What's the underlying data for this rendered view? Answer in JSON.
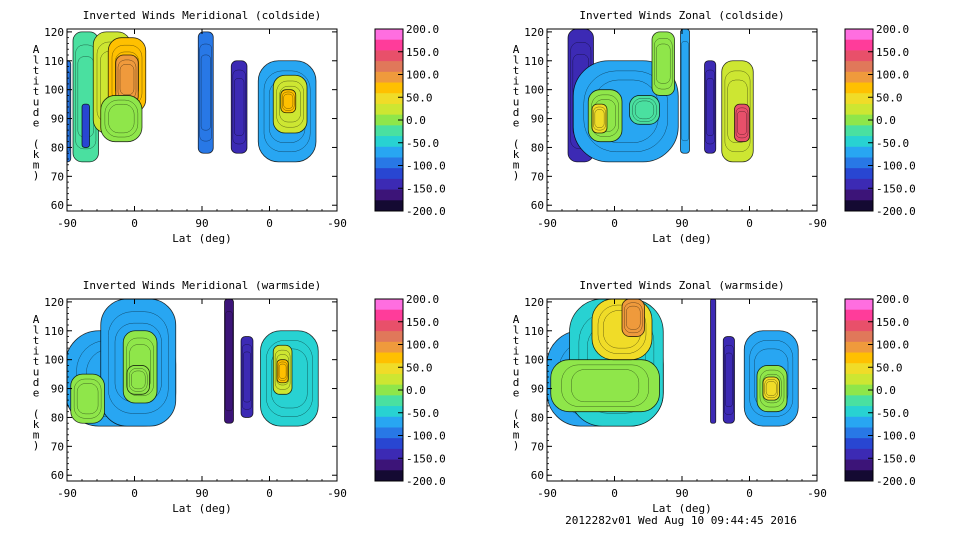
{
  "footer": "2012282v01 Wed Aug 10 09:44:45 2016",
  "colorbar": {
    "ticks": [
      "200.0",
      "150.0",
      "100.0",
      "50.0",
      "0.0",
      "-50.0",
      "-100.0",
      "-150.0",
      "-200.0"
    ],
    "colors": [
      "#ff6ee0",
      "#ff3c9a",
      "#e8506a",
      "#e0785a",
      "#ef9a3c",
      "#ffc000",
      "#f0dc28",
      "#cde632",
      "#8fe64a",
      "#4ae0a0",
      "#28d2d2",
      "#28a6f2",
      "#2878e6",
      "#2846d2",
      "#3c2ab4",
      "#3c1478",
      "#140a32"
    ]
  },
  "chart_data": [
    {
      "type": "heatmap",
      "title": "Inverted Winds Meridional (coldside)",
      "xlabel": "Lat (deg)",
      "ylabel": "Altitude (km)",
      "x_ticks": [
        "-90",
        "0",
        "90",
        "0",
        "-90"
      ],
      "y_ticks": [
        "60",
        "70",
        "80",
        "90",
        "100",
        "110",
        "120"
      ],
      "ylim": [
        58,
        121
      ],
      "colorbar_range": [
        -200,
        200
      ],
      "blobs": [
        {
          "x": [
            -97,
            -85
          ],
          "y": [
            75,
            110
          ],
          "v": -90
        },
        {
          "x": [
            -82,
            -48
          ],
          "y": [
            75,
            120
          ],
          "v": -20
        },
        {
          "x": [
            -55,
            -5
          ],
          "y": [
            85,
            120
          ],
          "v": 35
        },
        {
          "x": [
            -35,
            15
          ],
          "y": [
            92,
            118
          ],
          "v": 75
        },
        {
          "x": [
            -25,
            5
          ],
          "y": [
            95,
            112
          ],
          "v": 105
        },
        {
          "x": [
            -45,
            10
          ],
          "y": [
            82,
            98
          ],
          "v": 10
        },
        {
          "x": [
            -70,
            -60
          ],
          "y": [
            80,
            95
          ],
          "v": -120
        },
        {
          "x": [
            85,
            105
          ],
          "y": [
            78,
            120
          ],
          "v": -90
        },
        {
          "x": [
            129,
            150
          ],
          "y": [
            78,
            110
          ],
          "v": -140
        },
        {
          "x": [
            165,
            242
          ],
          "y": [
            75,
            110
          ],
          "v": -60
        },
        {
          "x": [
            185,
            230
          ],
          "y": [
            85,
            105
          ],
          "v": 20
        },
        {
          "x": [
            195,
            215
          ],
          "y": [
            92,
            100
          ],
          "v": 60
        }
      ]
    },
    {
      "type": "heatmap",
      "title": "Inverted Winds Zonal (coldside)",
      "xlabel": "Lat (deg)",
      "ylabel": "Altitude (km)",
      "x_ticks": [
        "-90",
        "0",
        "90",
        "0",
        "-90"
      ],
      "y_ticks": [
        "60",
        "70",
        "80",
        "90",
        "100",
        "110",
        "120"
      ],
      "ylim": [
        58,
        121
      ],
      "colorbar_range": [
        -200,
        200
      ],
      "blobs": [
        {
          "x": [
            -62,
            -28
          ],
          "y": [
            75,
            121
          ],
          "v": -140
        },
        {
          "x": [
            -55,
            85
          ],
          "y": [
            75,
            110
          ],
          "v": -60
        },
        {
          "x": [
            -35,
            10
          ],
          "y": [
            82,
            100
          ],
          "v": -5
        },
        {
          "x": [
            -30,
            -10
          ],
          "y": [
            85,
            95
          ],
          "v": 40
        },
        {
          "x": [
            20,
            60
          ],
          "y": [
            88,
            98
          ],
          "v": -30
        },
        {
          "x": [
            50,
            80
          ],
          "y": [
            98,
            120
          ],
          "v": -10
        },
        {
          "x": [
            88,
            100
          ],
          "y": [
            78,
            121
          ],
          "v": -80
        },
        {
          "x": [
            120,
            135
          ],
          "y": [
            78,
            110
          ],
          "v": -150
        },
        {
          "x": [
            143,
            185
          ],
          "y": [
            75,
            110
          ],
          "v": 30
        },
        {
          "x": [
            160,
            180
          ],
          "y": [
            82,
            95
          ],
          "v": 150
        }
      ]
    },
    {
      "type": "heatmap",
      "title": "Inverted Winds Meridional (warmside)",
      "xlabel": "Lat (deg)",
      "ylabel": "Altitude (km)",
      "x_ticks": [
        "-90",
        "0",
        "90",
        "0",
        "-90"
      ],
      "y_ticks": [
        "60",
        "70",
        "80",
        "90",
        "100",
        "110",
        "120"
      ],
      "ylim": [
        58,
        121
      ],
      "colorbar_range": [
        -200,
        200
      ],
      "blobs": [
        {
          "x": [
            -92,
            55
          ],
          "y": [
            77,
            110
          ],
          "v": -70
        },
        {
          "x": [
            -45,
            55
          ],
          "y": [
            77,
            121
          ],
          "v": -70
        },
        {
          "x": [
            -85,
            -40
          ],
          "y": [
            78,
            95
          ],
          "v": 10
        },
        {
          "x": [
            -15,
            30
          ],
          "y": [
            85,
            110
          ],
          "v": -10
        },
        {
          "x": [
            -10,
            20
          ],
          "y": [
            88,
            98
          ],
          "v": 10
        },
        {
          "x": [
            120,
            132
          ],
          "y": [
            78,
            121
          ],
          "v": -160
        },
        {
          "x": [
            142,
            158
          ],
          "y": [
            80,
            108
          ],
          "v": -150
        },
        {
          "x": [
            168,
            245
          ],
          "y": [
            77,
            110
          ],
          "v": -40
        },
        {
          "x": [
            185,
            210
          ],
          "y": [
            88,
            105
          ],
          "v": 30
        },
        {
          "x": [
            190,
            205
          ],
          "y": [
            92,
            100
          ],
          "v": 80
        }
      ]
    },
    {
      "type": "heatmap",
      "title": "Inverted Winds Zonal (warmside)",
      "xlabel": "Lat (deg)",
      "ylabel": "Altitude (km)",
      "x_ticks": [
        "-90",
        "0",
        "90",
        "0",
        "-90"
      ],
      "y_ticks": [
        "60",
        "70",
        "80",
        "90",
        "100",
        "110",
        "120"
      ],
      "ylim": [
        58,
        121
      ],
      "colorbar_range": [
        -200,
        200
      ],
      "blobs": [
        {
          "x": [
            -90,
            65
          ],
          "y": [
            77,
            110
          ],
          "v": -60
        },
        {
          "x": [
            -60,
            65
          ],
          "y": [
            77,
            121
          ],
          "v": -50
        },
        {
          "x": [
            -85,
            60
          ],
          "y": [
            82,
            100
          ],
          "v": -5
        },
        {
          "x": [
            -30,
            50
          ],
          "y": [
            100,
            121
          ],
          "v": 40
        },
        {
          "x": [
            10,
            40
          ],
          "y": [
            108,
            121
          ],
          "v": 90
        },
        {
          "x": [
            128,
            135
          ],
          "y": [
            78,
            121
          ],
          "v": -150
        },
        {
          "x": [
            145,
            160
          ],
          "y": [
            78,
            108
          ],
          "v": -150
        },
        {
          "x": [
            173,
            245
          ],
          "y": [
            77,
            110
          ],
          "v": -70
        },
        {
          "x": [
            190,
            230
          ],
          "y": [
            82,
            98
          ],
          "v": 0
        },
        {
          "x": [
            198,
            220
          ],
          "y": [
            86,
            94
          ],
          "v": 50
        }
      ]
    }
  ]
}
